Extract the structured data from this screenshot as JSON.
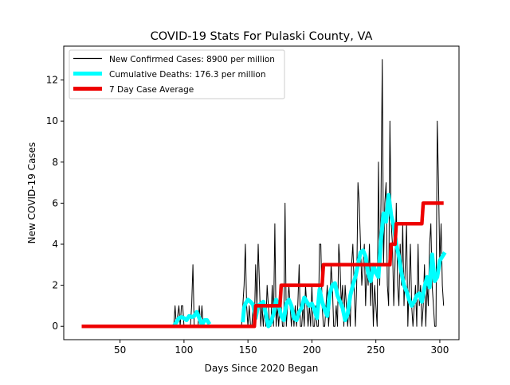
{
  "chart_data": {
    "type": "line",
    "title": "COVID-19 Stats For Pulaski County, VA",
    "xlabel": "Days Since 2020 Began",
    "ylabel": "New COVID-19 Cases",
    "xlim": [
      6,
      315
    ],
    "ylim": [
      -0.65,
      13.65
    ],
    "x_ticks": [
      50,
      100,
      150,
      200,
      250,
      300
    ],
    "y_ticks": [
      0,
      2,
      4,
      6,
      8,
      10,
      12
    ],
    "grid": false,
    "legend_position": "top-left",
    "series": [
      {
        "name": "New Confirmed Cases: 8900 per million",
        "color": "#000000",
        "style": "thin",
        "points": [
          [
            20,
            0
          ],
          [
            92,
            0
          ],
          [
            93,
            1
          ],
          [
            94,
            0
          ],
          [
            96,
            1
          ],
          [
            97,
            0
          ],
          [
            98,
            1
          ],
          [
            99,
            1
          ],
          [
            100,
            0
          ],
          [
            104,
            0
          ],
          [
            105,
            0
          ],
          [
            106,
            1
          ],
          [
            107,
            3
          ],
          [
            108,
            0
          ],
          [
            110,
            0
          ],
          [
            111,
            0
          ],
          [
            112,
            1
          ],
          [
            113,
            0
          ],
          [
            114,
            1
          ],
          [
            115,
            0
          ],
          [
            116,
            0
          ],
          [
            120,
            0
          ],
          [
            145,
            0
          ],
          [
            146,
            1
          ],
          [
            147,
            2
          ],
          [
            148,
            4
          ],
          [
            149,
            1
          ],
          [
            150,
            0
          ],
          [
            151,
            1
          ],
          [
            152,
            0
          ],
          [
            153,
            0
          ],
          [
            154,
            1
          ],
          [
            155,
            0
          ],
          [
            156,
            3
          ],
          [
            157,
            1
          ],
          [
            158,
            4
          ],
          [
            159,
            2
          ],
          [
            160,
            0
          ],
          [
            161,
            1
          ],
          [
            162,
            0
          ],
          [
            163,
            1
          ],
          [
            164,
            0
          ],
          [
            165,
            2
          ],
          [
            166,
            1
          ],
          [
            167,
            0
          ],
          [
            168,
            0
          ],
          [
            169,
            2
          ],
          [
            170,
            0
          ],
          [
            171,
            5
          ],
          [
            172,
            0
          ],
          [
            173,
            1
          ],
          [
            174,
            0
          ],
          [
            175,
            1
          ],
          [
            176,
            1
          ],
          [
            177,
            0
          ],
          [
            178,
            0
          ],
          [
            179,
            6
          ],
          [
            180,
            0
          ],
          [
            181,
            1
          ],
          [
            182,
            2
          ],
          [
            183,
            1
          ],
          [
            184,
            0
          ],
          [
            185,
            1
          ],
          [
            186,
            0
          ],
          [
            187,
            1
          ],
          [
            188,
            0
          ],
          [
            189,
            1
          ],
          [
            190,
            3
          ],
          [
            191,
            0
          ],
          [
            192,
            0
          ],
          [
            193,
            1
          ],
          [
            194,
            0
          ],
          [
            195,
            2
          ],
          [
            196,
            1
          ],
          [
            197,
            0
          ],
          [
            198,
            1
          ],
          [
            199,
            0
          ],
          [
            200,
            2
          ],
          [
            201,
            0
          ],
          [
            202,
            0
          ],
          [
            203,
            1
          ],
          [
            204,
            0
          ],
          [
            205,
            0
          ],
          [
            206,
            4
          ],
          [
            207,
            4
          ],
          [
            208,
            1
          ],
          [
            209,
            0
          ],
          [
            210,
            0
          ],
          [
            211,
            1
          ],
          [
            212,
            2
          ],
          [
            213,
            0
          ],
          [
            214,
            1
          ],
          [
            215,
            3
          ],
          [
            216,
            2
          ],
          [
            217,
            0
          ],
          [
            218,
            0
          ],
          [
            219,
            1
          ],
          [
            220,
            0
          ],
          [
            221,
            4
          ],
          [
            222,
            3
          ],
          [
            223,
            1
          ],
          [
            224,
            2
          ],
          [
            225,
            0
          ],
          [
            226,
            2
          ],
          [
            227,
            1
          ],
          [
            228,
            0
          ],
          [
            229,
            1
          ],
          [
            230,
            0
          ],
          [
            231,
            3
          ],
          [
            232,
            4
          ],
          [
            233,
            2
          ],
          [
            234,
            0
          ],
          [
            235,
            2
          ],
          [
            236,
            7
          ],
          [
            237,
            6
          ],
          [
            238,
            4
          ],
          [
            239,
            2
          ],
          [
            240,
            3
          ],
          [
            241,
            4
          ],
          [
            242,
            1
          ],
          [
            243,
            3
          ],
          [
            244,
            2
          ],
          [
            245,
            4
          ],
          [
            246,
            1
          ],
          [
            247,
            3
          ],
          [
            248,
            0
          ],
          [
            249,
            2
          ],
          [
            250,
            1
          ],
          [
            251,
            0
          ],
          [
            252,
            8
          ],
          [
            253,
            2
          ],
          [
            254,
            6
          ],
          [
            255,
            13
          ],
          [
            256,
            3
          ],
          [
            257,
            6
          ],
          [
            258,
            7
          ],
          [
            259,
            2
          ],
          [
            260,
            1
          ],
          [
            261,
            10
          ],
          [
            262,
            5
          ],
          [
            263,
            4
          ],
          [
            264,
            1
          ],
          [
            265,
            3
          ],
          [
            266,
            6
          ],
          [
            267,
            2
          ],
          [
            268,
            1
          ],
          [
            269,
            4
          ],
          [
            270,
            2
          ],
          [
            271,
            5
          ],
          [
            272,
            1
          ],
          [
            273,
            3
          ],
          [
            274,
            5
          ],
          [
            275,
            0
          ],
          [
            276,
            2
          ],
          [
            277,
            4
          ],
          [
            278,
            1
          ],
          [
            279,
            0
          ],
          [
            280,
            1
          ],
          [
            281,
            2
          ],
          [
            282,
            0
          ],
          [
            283,
            4
          ],
          [
            284,
            1
          ],
          [
            285,
            2
          ],
          [
            286,
            0
          ],
          [
            287,
            1
          ],
          [
            288,
            3
          ],
          [
            289,
            0
          ],
          [
            290,
            2
          ],
          [
            291,
            1
          ],
          [
            292,
            4
          ],
          [
            293,
            5
          ],
          [
            294,
            2
          ],
          [
            295,
            1
          ],
          [
            296,
            0
          ],
          [
            297,
            0
          ],
          [
            298,
            10
          ],
          [
            299,
            7
          ],
          [
            300,
            3
          ],
          [
            301,
            5
          ],
          [
            302,
            2
          ],
          [
            303,
            1
          ]
        ]
      },
      {
        "name": "Cumulative Deaths: 176.3 per million",
        "color": "#00ffff",
        "style": "thick",
        "points": [
          [
            92,
            0
          ],
          [
            94,
            0.2
          ],
          [
            96,
            0.4
          ],
          [
            98,
            0.45
          ],
          [
            100,
            0.4
          ],
          [
            102,
            0.3
          ],
          [
            104,
            0.5
          ],
          [
            106,
            0.45
          ],
          [
            108,
            0.5
          ],
          [
            110,
            0.7
          ],
          [
            112,
            0.4
          ],
          [
            114,
            0.05
          ],
          [
            116,
            0.3
          ],
          [
            118,
            0.3
          ],
          [
            120,
            0.1
          ],
          [
            146,
            0.2
          ],
          [
            147,
            0.9
          ],
          [
            148,
            1.1
          ],
          [
            150,
            1.3
          ],
          [
            152,
            1.2
          ],
          [
            154,
            1.05
          ],
          [
            156,
            0.4
          ],
          [
            158,
            1.0
          ],
          [
            160,
            1.1
          ],
          [
            162,
            1.2
          ],
          [
            164,
            0.6
          ],
          [
            166,
            0.0
          ],
          [
            168,
            0.2
          ],
          [
            170,
            0.6
          ],
          [
            172,
            1.3
          ],
          [
            174,
            1.0
          ],
          [
            176,
            0.5
          ],
          [
            178,
            0.3
          ],
          [
            180,
            1.1
          ],
          [
            182,
            1.3
          ],
          [
            184,
            1.0
          ],
          [
            186,
            0.4
          ],
          [
            188,
            0.3
          ],
          [
            190,
            0.7
          ],
          [
            192,
            0.9
          ],
          [
            194,
            1.4
          ],
          [
            196,
            1.2
          ],
          [
            198,
            1.0
          ],
          [
            200,
            1.1
          ],
          [
            202,
            0.8
          ],
          [
            204,
            0.4
          ],
          [
            206,
            1.8
          ],
          [
            208,
            1.2
          ],
          [
            210,
            0.8
          ],
          [
            212,
            0.5
          ],
          [
            214,
            1.6
          ],
          [
            216,
            2.0
          ],
          [
            218,
            2.1
          ],
          [
            220,
            1.5
          ],
          [
            222,
            1.2
          ],
          [
            224,
            0.9
          ],
          [
            226,
            0.3
          ],
          [
            228,
            0.6
          ],
          [
            230,
            1.5
          ],
          [
            232,
            2.0
          ],
          [
            234,
            2.4
          ],
          [
            236,
            3.0
          ],
          [
            238,
            3.6
          ],
          [
            240,
            3.7
          ],
          [
            242,
            3.4
          ],
          [
            244,
            2.6
          ],
          [
            246,
            2.2
          ],
          [
            248,
            3.0
          ],
          [
            250,
            2.6
          ],
          [
            252,
            2.4
          ],
          [
            254,
            4.2
          ],
          [
            256,
            5.5
          ],
          [
            258,
            5.1
          ],
          [
            260,
            6.4
          ],
          [
            262,
            5.4
          ],
          [
            264,
            4.9
          ],
          [
            266,
            4.0
          ],
          [
            268,
            3.4
          ],
          [
            270,
            2.6
          ],
          [
            272,
            2.0
          ],
          [
            274,
            1.7
          ],
          [
            276,
            1.3
          ],
          [
            278,
            1.0
          ],
          [
            280,
            1.2
          ],
          [
            282,
            1.5
          ],
          [
            284,
            1.6
          ],
          [
            286,
            1.2
          ],
          [
            288,
            1.9
          ],
          [
            290,
            2.4
          ],
          [
            292,
            1.9
          ],
          [
            294,
            3.5
          ],
          [
            296,
            2.2
          ],
          [
            298,
            2.4
          ],
          [
            300,
            3.2
          ],
          [
            302,
            3.4
          ],
          [
            304,
            3.6
          ]
        ]
      },
      {
        "name": "7 Day Case Average",
        "color": "#ee0000",
        "style": "step",
        "points": [
          [
            20,
            0
          ],
          [
            155,
            0
          ],
          [
            156,
            1
          ],
          [
            175,
            1
          ],
          [
            176,
            2
          ],
          [
            208,
            2
          ],
          [
            209,
            3
          ],
          [
            261,
            3
          ],
          [
            262,
            4
          ],
          [
            265,
            4
          ],
          [
            266,
            5
          ],
          [
            286,
            5
          ],
          [
            287,
            6
          ],
          [
            303,
            6
          ]
        ]
      }
    ]
  }
}
